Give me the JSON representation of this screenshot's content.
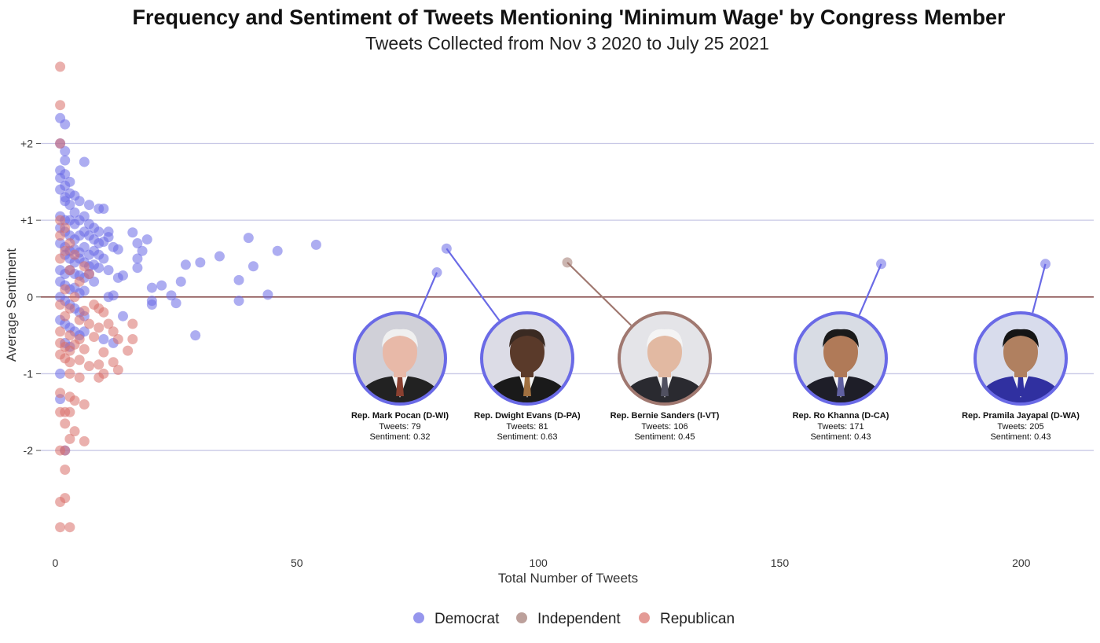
{
  "title": "Frequency and Sentiment of Tweets Mentioning 'Minimum Wage' by Congress Member",
  "subtitle": "Tweets Collected from Nov 3 2020 to July 25 2021",
  "chart_data": {
    "type": "scatter",
    "xlabel": "Total Number of Tweets",
    "ylabel": "Average Sentiment",
    "xlim": [
      -3,
      215
    ],
    "ylim": [
      -3.3,
      3.05
    ],
    "x_ticks": [
      0,
      50,
      100,
      150,
      200
    ],
    "x_tick_labels": [
      "0",
      "50",
      "100",
      "150",
      "200"
    ],
    "y_ticks": [
      2,
      1,
      0,
      -1,
      -2
    ],
    "y_tick_labels": [
      "+2",
      "+1",
      "0",
      "-1",
      "-2"
    ],
    "grid": "horizontal",
    "legend_position": "bottom",
    "colors": {
      "Democrat": "#6a6ae6",
      "Independent": "#a07870",
      "Republican": "#d9706a",
      "zero_line": "#8a5050",
      "grid": "#c8c8e6"
    },
    "legend": [
      "Democrat",
      "Independent",
      "Republican"
    ],
    "series": [
      {
        "name": "Democrat",
        "points": [
          [
            1,
            2.33
          ],
          [
            2,
            2.25
          ],
          [
            1,
            2.0
          ],
          [
            2,
            1.9
          ],
          [
            2,
            1.78
          ],
          [
            1,
            1.65
          ],
          [
            2,
            1.6
          ],
          [
            1,
            1.55
          ],
          [
            3,
            1.5
          ],
          [
            2,
            1.45
          ],
          [
            6,
            1.76
          ],
          [
            1,
            1.4
          ],
          [
            3,
            1.35
          ],
          [
            2,
            1.3
          ],
          [
            4,
            1.32
          ],
          [
            2,
            1.25
          ],
          [
            3,
            1.2
          ],
          [
            5,
            1.25
          ],
          [
            7,
            1.2
          ],
          [
            9,
            1.15
          ],
          [
            10,
            1.15
          ],
          [
            4,
            1.1
          ],
          [
            1,
            1.05
          ],
          [
            2,
            1.0
          ],
          [
            3,
            1.0
          ],
          [
            4,
            0.95
          ],
          [
            5,
            1.0
          ],
          [
            6,
            1.05
          ],
          [
            7,
            0.95
          ],
          [
            8,
            0.9
          ],
          [
            9,
            0.85
          ],
          [
            11,
            0.85
          ],
          [
            1,
            0.9
          ],
          [
            2,
            0.85
          ],
          [
            3,
            0.8
          ],
          [
            4,
            0.75
          ],
          [
            5,
            0.8
          ],
          [
            6,
            0.85
          ],
          [
            7,
            0.8
          ],
          [
            8,
            0.75
          ],
          [
            9,
            0.7
          ],
          [
            10,
            0.72
          ],
          [
            11,
            0.78
          ],
          [
            12,
            0.65
          ],
          [
            13,
            0.62
          ],
          [
            16,
            0.84
          ],
          [
            17,
            0.7
          ],
          [
            19,
            0.75
          ],
          [
            18,
            0.6
          ],
          [
            1,
            0.7
          ],
          [
            2,
            0.65
          ],
          [
            3,
            0.6
          ],
          [
            4,
            0.62
          ],
          [
            5,
            0.58
          ],
          [
            6,
            0.65
          ],
          [
            7,
            0.55
          ],
          [
            8,
            0.6
          ],
          [
            9,
            0.55
          ],
          [
            10,
            0.5
          ],
          [
            2,
            0.55
          ],
          [
            3,
            0.5
          ],
          [
            4,
            0.45
          ],
          [
            5,
            0.5
          ],
          [
            6,
            0.45
          ],
          [
            7,
            0.4
          ],
          [
            8,
            0.42
          ],
          [
            9,
            0.38
          ],
          [
            17,
            0.5
          ],
          [
            17,
            0.38
          ],
          [
            1,
            0.35
          ],
          [
            2,
            0.3
          ],
          [
            3,
            0.35
          ],
          [
            4,
            0.3
          ],
          [
            5,
            0.28
          ],
          [
            6,
            0.25
          ],
          [
            7,
            0.3
          ],
          [
            8,
            0.2
          ],
          [
            11,
            0.35
          ],
          [
            13,
            0.25
          ],
          [
            14,
            0.28
          ],
          [
            1,
            0.2
          ],
          [
            2,
            0.15
          ],
          [
            3,
            0.1
          ],
          [
            4,
            0.12
          ],
          [
            5,
            0.05
          ],
          [
            6,
            0.08
          ],
          [
            11,
            0.0
          ],
          [
            12,
            0.02
          ],
          [
            1,
            0.0
          ],
          [
            2,
            -0.05
          ],
          [
            3,
            -0.1
          ],
          [
            4,
            -0.15
          ],
          [
            5,
            -0.2
          ],
          [
            6,
            -0.25
          ],
          [
            1,
            -0.3
          ],
          [
            2,
            -0.35
          ],
          [
            3,
            -0.4
          ],
          [
            4,
            -0.45
          ],
          [
            5,
            -0.5
          ],
          [
            6,
            -0.45
          ],
          [
            10,
            -0.55
          ],
          [
            12,
            -0.6
          ],
          [
            14,
            -0.25
          ],
          [
            2,
            -0.6
          ],
          [
            3,
            -0.65
          ],
          [
            1,
            -1.0
          ],
          [
            1,
            -1.33
          ],
          [
            2,
            -2.0
          ],
          [
            20,
            0.12
          ],
          [
            20,
            -0.05
          ],
          [
            20,
            -0.1
          ],
          [
            22,
            0.15
          ],
          [
            24,
            0.02
          ],
          [
            25,
            -0.08
          ],
          [
            26,
            0.2
          ],
          [
            27,
            0.42
          ],
          [
            29,
            -0.5
          ],
          [
            30,
            0.45
          ],
          [
            34,
            0.53
          ],
          [
            38,
            0.22
          ],
          [
            38,
            -0.05
          ],
          [
            40,
            0.77
          ],
          [
            41,
            0.4
          ],
          [
            44,
            0.03
          ],
          [
            46,
            0.6
          ],
          [
            54,
            0.68
          ],
          [
            79,
            0.32
          ],
          [
            81,
            0.63
          ],
          [
            171,
            0.43
          ],
          [
            205,
            0.43
          ]
        ]
      },
      {
        "name": "Independent",
        "points": [
          [
            106,
            0.45
          ]
        ]
      },
      {
        "name": "Republican",
        "points": [
          [
            1,
            3.0
          ],
          [
            1,
            2.5
          ],
          [
            1,
            2.0
          ],
          [
            1,
            1.0
          ],
          [
            2,
            0.9
          ],
          [
            1,
            0.8
          ],
          [
            3,
            0.7
          ],
          [
            2,
            0.6
          ],
          [
            4,
            0.55
          ],
          [
            1,
            0.5
          ],
          [
            6,
            0.4
          ],
          [
            3,
            0.35
          ],
          [
            7,
            0.3
          ],
          [
            5,
            0.2
          ],
          [
            2,
            0.1
          ],
          [
            4,
            0.0
          ],
          [
            1,
            -0.1
          ],
          [
            3,
            -0.15
          ],
          [
            6,
            -0.18
          ],
          [
            8,
            -0.1
          ],
          [
            9,
            -0.15
          ],
          [
            10,
            -0.2
          ],
          [
            2,
            -0.25
          ],
          [
            5,
            -0.3
          ],
          [
            7,
            -0.35
          ],
          [
            9,
            -0.4
          ],
          [
            11,
            -0.35
          ],
          [
            12,
            -0.45
          ],
          [
            16,
            -0.35
          ],
          [
            1,
            -0.45
          ],
          [
            3,
            -0.5
          ],
          [
            5,
            -0.55
          ],
          [
            8,
            -0.52
          ],
          [
            13,
            -0.55
          ],
          [
            16,
            -0.55
          ],
          [
            1,
            -0.6
          ],
          [
            2,
            -0.65
          ],
          [
            3,
            -0.7
          ],
          [
            4,
            -0.62
          ],
          [
            6,
            -0.68
          ],
          [
            10,
            -0.72
          ],
          [
            15,
            -0.7
          ],
          [
            1,
            -0.75
          ],
          [
            2,
            -0.8
          ],
          [
            3,
            -0.85
          ],
          [
            5,
            -0.82
          ],
          [
            7,
            -0.9
          ],
          [
            9,
            -0.88
          ],
          [
            12,
            -0.85
          ],
          [
            13,
            -0.95
          ],
          [
            3,
            -1.0
          ],
          [
            5,
            -1.05
          ],
          [
            9,
            -1.05
          ],
          [
            10,
            -1.0
          ],
          [
            1,
            -1.25
          ],
          [
            3,
            -1.3
          ],
          [
            4,
            -1.35
          ],
          [
            6,
            -1.4
          ],
          [
            1,
            -1.5
          ],
          [
            2,
            -1.5
          ],
          [
            3,
            -1.5
          ],
          [
            2,
            -1.65
          ],
          [
            4,
            -1.75
          ],
          [
            3,
            -1.85
          ],
          [
            6,
            -1.88
          ],
          [
            1,
            -2.0
          ],
          [
            2,
            -2.0
          ],
          [
            2,
            -2.25
          ],
          [
            2,
            -2.62
          ],
          [
            1,
            -2.67
          ],
          [
            1,
            -3.0
          ],
          [
            3,
            -3.0
          ]
        ]
      }
    ],
    "annotations": [
      {
        "name": "Rep. Mark Pocan (D-WI)",
        "tweets_label": "Tweets: 79",
        "sentiment_label": "Sentiment: 0.32",
        "x": 79,
        "y": 0.32,
        "party": "Democrat",
        "portrait": {
          "bg": "#d0d0d8",
          "skin": "#e8b9a8",
          "hair": "#f0f0f0",
          "suit": "#222222",
          "tie": "#8a4030"
        }
      },
      {
        "name": "Rep. Dwight Evans (D-PA)",
        "tweets_label": "Tweets: 81",
        "sentiment_label": "Sentiment: 0.63",
        "x": 81,
        "y": 0.63,
        "party": "Democrat",
        "portrait": {
          "bg": "#dcdce6",
          "skin": "#5a3a2a",
          "hair": "#3a2a22",
          "suit": "#1a1a1a",
          "tie": "#a07040"
        }
      },
      {
        "name": "Rep. Bernie Sanders (I-VT)",
        "tweets_label": "Tweets: 106",
        "sentiment_label": "Sentiment: 0.45",
        "x": 106,
        "y": 0.45,
        "party": "Independent",
        "portrait": {
          "bg": "#e4e4e8",
          "skin": "#e2b9a2",
          "hair": "#f4f4f4",
          "suit": "#2a2a30",
          "tie": "#505060"
        }
      },
      {
        "name": "Rep. Ro Khanna (D-CA)",
        "tweets_label": "Tweets: 171",
        "sentiment_label": "Sentiment: 0.43",
        "x": 171,
        "y": 0.43,
        "party": "Democrat",
        "portrait": {
          "bg": "#d8dce4",
          "skin": "#b07a58",
          "hair": "#1a1a1a",
          "suit": "#1e1e28",
          "tie": "#6060a0"
        }
      },
      {
        "name": "Rep. Pramila Jayapal (D-WA)",
        "tweets_label": "Tweets: 205",
        "sentiment_label": "Sentiment: 0.43",
        "x": 205,
        "y": 0.43,
        "party": "Democrat",
        "portrait": {
          "bg": "#d8dcec",
          "skin": "#b08060",
          "hair": "#151515",
          "suit": "#3030a0",
          "tie": "#3030a0"
        }
      }
    ]
  }
}
